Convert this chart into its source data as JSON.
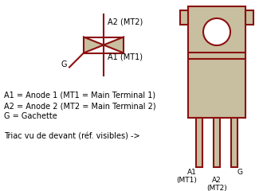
{
  "background_color": "#ffffff",
  "dark_red": "#8B1010",
  "body_fill": "#C8BFA0",
  "text_color": "#000000",
  "legend_lines": [
    "A1 = Anode 1 (MT1 = Main Terminal 1)",
    "A2 = Anode 2 (MT2 = Main Terminal 2)",
    "G = Gachette"
  ],
  "bottom_text": "Triac vu de devant (réf. visibles) ->",
  "label_A2": "A2 (MT2)",
  "label_A1": "A1 (MT1)",
  "label_G": "G",
  "figsize": [
    3.3,
    2.4
  ],
  "dpi": 100
}
